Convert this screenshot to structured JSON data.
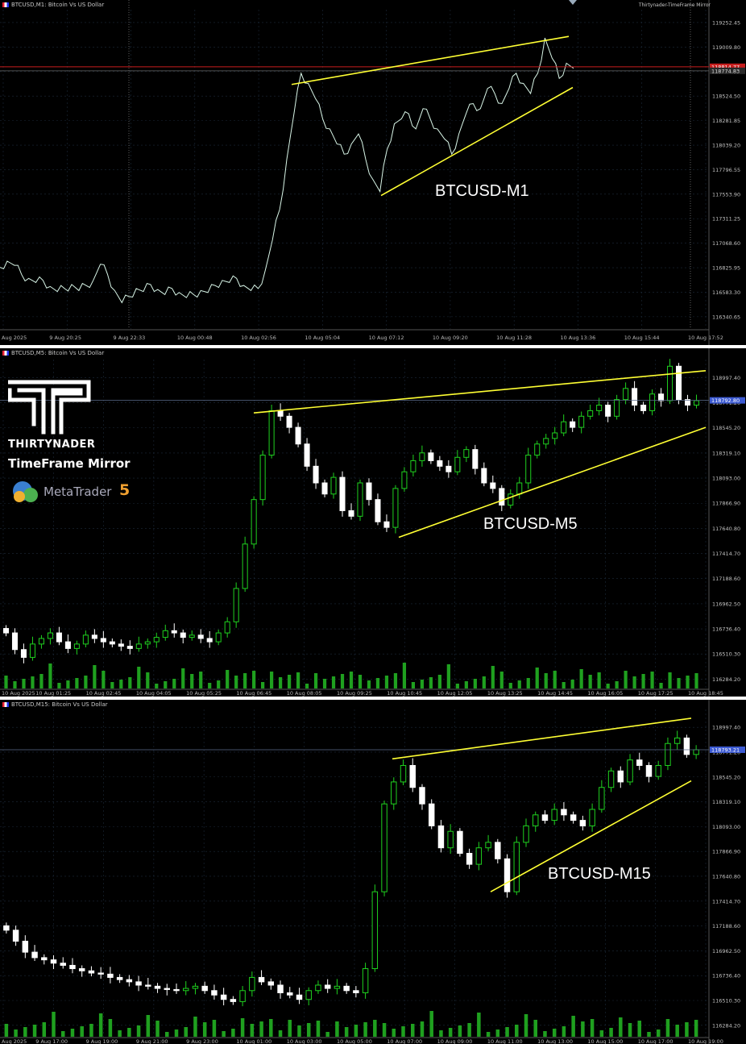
{
  "brand": {
    "name": "THIRTYNADER",
    "product": "TimeFrame Mirror",
    "platform": "MetaTrader",
    "platform_version": "5",
    "header_right": "Thirtynader-TimeFrame Mirror"
  },
  "colors": {
    "background": "#000000",
    "trendline": "#ffff33",
    "m1_line": "#d9f6e8",
    "bull_candle": "#1fd11f",
    "bear_candle": "#ffffff",
    "price_red_line": "#c81e1e",
    "price_tag": "#3c5ad2",
    "volume": "#1fa01f"
  },
  "chart_data": [
    {
      "type": "line",
      "header": "BTCUSD,M1: Bitcoin Vs US Dollar",
      "annotation": "BTCUSD-M1",
      "y_ticks": [
        "119252.45",
        "119009.80",
        "118767.15",
        "118524.50",
        "118281.85",
        "118039.20",
        "117796.55",
        "117553.90",
        "117311.25",
        "117068.60",
        "116825.95",
        "116583.30",
        "116340.65"
      ],
      "ylim": [
        116220,
        119380
      ],
      "price_labels": [
        "118814.77",
        "118774.83"
      ],
      "price_values": [
        118814.77,
        118774.83
      ],
      "x_ticks": [
        "Aug 2025",
        "9 Aug 20:25",
        "9 Aug 22:33",
        "10 Aug 00:48",
        "10 Aug 02:56",
        "10 Aug 05:04",
        "10 Aug 07:12",
        "10 Aug 09:20",
        "10 Aug 11:28",
        "10 Aug 13:36",
        "10 Aug 15:44",
        "10 Aug 17:52"
      ],
      "series": [
        {
          "values": [
            116830,
            116890,
            116850,
            116760,
            116720,
            116680,
            116700,
            116640,
            116590,
            116620,
            116660,
            116600,
            116650,
            116700,
            116860,
            116760,
            116600,
            116480,
            116540,
            116620,
            116590,
            116660,
            116610,
            116560,
            116620,
            116580,
            116530,
            116560,
            116600,
            116580,
            116650,
            116700,
            116680,
            116720,
            116650,
            116600,
            116620,
            116800,
            117100,
            117400,
            117900,
            118350,
            118750,
            118650,
            118500,
            118300,
            118200,
            118050,
            117950,
            118050,
            118150,
            117900,
            117700,
            117580,
            118000,
            118250,
            118300,
            118350,
            118200,
            118400,
            118300,
            118200,
            118100,
            117950,
            118150,
            118350,
            118450,
            118400,
            118600,
            118550,
            118450,
            118600,
            118750,
            118650,
            118550,
            118750,
            119100,
            118900,
            118700,
            118850,
            118800
          ]
        }
      ],
      "trendlines_y": [
        [
          118640,
          119115
        ],
        [
          117540,
          118610
        ]
      ]
    },
    {
      "type": "candlestick",
      "header": "BTCUSD,M5: Bitcoin Vs US Dollar",
      "annotation": "BTCUSD-M5",
      "y_ticks": [
        "118997.40",
        "118771.20",
        "118545.20",
        "118319.10",
        "118093.00",
        "117866.90",
        "117640.80",
        "117414.70",
        "117188.60",
        "116962.50",
        "116736.40",
        "116510.30",
        "116284.20"
      ],
      "ylim": [
        116200,
        119160
      ],
      "price_labels": [
        "118792.80"
      ],
      "price_values": [
        118792.8
      ],
      "x_ticks": [
        "10 Aug 2025",
        "10 Aug 01:25",
        "10 Aug 02:45",
        "10 Aug 04:05",
        "10 Aug 05:25",
        "10 Aug 06:45",
        "10 Aug 08:05",
        "10 Aug 09:25",
        "10 Aug 10:45",
        "10 Aug 12:05",
        "10 Aug 13:25",
        "10 Aug 14:45",
        "10 Aug 16:05",
        "10 Aug 17:25",
        "10 Aug 18:45"
      ],
      "closes": [
        116700,
        116550,
        116480,
        116600,
        116650,
        116700,
        116620,
        116560,
        116600,
        116680,
        116650,
        116620,
        116600,
        116580,
        116560,
        116600,
        116620,
        116660,
        116720,
        116700,
        116660,
        116680,
        116650,
        116620,
        116700,
        116800,
        117100,
        117500,
        117900,
        118300,
        118700,
        118650,
        118550,
        118400,
        118200,
        118050,
        117950,
        118100,
        117800,
        117750,
        118050,
        117900,
        117700,
        117650,
        118000,
        118150,
        118250,
        118320,
        118250,
        118200,
        118150,
        118280,
        118350,
        118180,
        118050,
        118000,
        117850,
        117950,
        118050,
        118300,
        118400,
        118450,
        118500,
        118600,
        118550,
        118650,
        118700,
        118750,
        118650,
        118800,
        118900,
        118750,
        118700,
        118850,
        118790,
        119100,
        118800,
        118750,
        118790
      ],
      "trendlines_y": [
        [
          118680,
          119060
        ],
        [
          117560,
          118550
        ]
      ]
    },
    {
      "type": "candlestick",
      "header": "BTCUSD,M15: Bitcoin Vs US Dollar",
      "annotation": "BTCUSD-M15",
      "y_ticks": [
        "118997.40",
        "118771.20",
        "118545.20",
        "118319.10",
        "118093.00",
        "117866.90",
        "117640.80",
        "117414.70",
        "117188.60",
        "116962.50",
        "116736.40",
        "116510.30",
        "116284.20"
      ],
      "ylim": [
        116180,
        119160
      ],
      "price_labels": [
        "118793.21"
      ],
      "price_values": [
        118793.21
      ],
      "x_ticks": [
        "Aug 2025",
        "9 Aug 17:00",
        "9 Aug 19:00",
        "9 Aug 21:00",
        "9 Aug 23:00",
        "10 Aug 01:00",
        "10 Aug 03:00",
        "10 Aug 05:00",
        "10 Aug 07:00",
        "10 Aug 09:00",
        "10 Aug 11:00",
        "10 Aug 13:00",
        "10 Aug 15:00",
        "10 Aug 17:00",
        "10 Aug 19:00"
      ],
      "closes": [
        117150,
        117050,
        116950,
        116900,
        116880,
        116850,
        116830,
        116800,
        116780,
        116760,
        116750,
        116720,
        116700,
        116680,
        116650,
        116640,
        116620,
        116610,
        116600,
        116620,
        116640,
        116600,
        116560,
        116520,
        116500,
        116600,
        116720,
        116680,
        116650,
        116580,
        116560,
        116520,
        116600,
        116650,
        116620,
        116640,
        116600,
        116580,
        116800,
        117500,
        118300,
        118500,
        118650,
        118450,
        118300,
        118100,
        117900,
        118050,
        117850,
        117750,
        117900,
        117950,
        117800,
        117500,
        117950,
        118100,
        118200,
        118150,
        118250,
        118200,
        118150,
        118100,
        118250,
        118450,
        118600,
        118500,
        118700,
        118650,
        118550,
        118650,
        118850,
        118900,
        118750,
        118793
      ],
      "trendlines_y": [
        [
          118710,
          119080
        ],
        [
          117500,
          118510
        ]
      ]
    }
  ]
}
